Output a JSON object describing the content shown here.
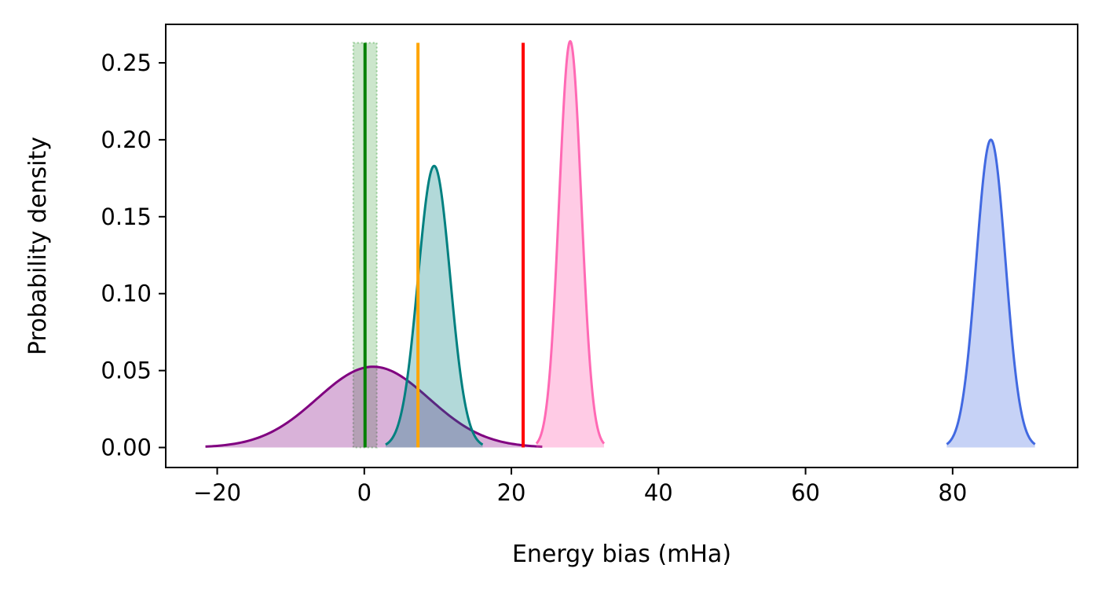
{
  "chart_data": {
    "type": "area",
    "xlabel": "Energy bias (mHa)",
    "ylabel": "Probability density",
    "xlim": [
      -27,
      97
    ],
    "ylim": [
      -0.013,
      0.275
    ],
    "xticks": [
      {
        "value": -20,
        "label": "−20"
      },
      {
        "value": 0,
        "label": "0"
      },
      {
        "value": 20,
        "label": "20"
      },
      {
        "value": 40,
        "label": "40"
      },
      {
        "value": 60,
        "label": "60"
      },
      {
        "value": 80,
        "label": "80"
      }
    ],
    "yticks": [
      {
        "value": 0.0,
        "label": "0.00"
      },
      {
        "value": 0.05,
        "label": "0.05"
      },
      {
        "value": 0.1,
        "label": "0.10"
      },
      {
        "value": 0.15,
        "label": "0.15"
      },
      {
        "value": 0.2,
        "label": "0.20"
      },
      {
        "value": 0.25,
        "label": "0.25"
      }
    ],
    "grid": false,
    "distributions": [
      {
        "mean": 1.2,
        "std": 7.6,
        "range": [
          -21.6,
          24.2
        ],
        "peak": 0.0525,
        "color": "#800080",
        "fill": "#800080",
        "fill_opacity": 0.3
      },
      {
        "mean": 9.5,
        "std": 2.18,
        "range": [
          2.9,
          16.1
        ],
        "peak": 0.183,
        "color": "#008080",
        "fill": "#008080",
        "fill_opacity": 0.3
      },
      {
        "mean": 28.0,
        "std": 1.51,
        "range": [
          23.4,
          32.6
        ],
        "peak": 0.264,
        "color": "#ff69b4",
        "fill": "#ff69b4",
        "fill_opacity": 0.35
      },
      {
        "mean": 85.2,
        "std": 1.99,
        "range": [
          79.2,
          91.2
        ],
        "peak": 0.2,
        "color": "#4169e1",
        "fill": "#4169e1",
        "fill_opacity": 0.3
      }
    ],
    "vertical_lines": [
      {
        "x": 0.1,
        "ymin": 0.0,
        "ymax": 0.263,
        "color": "#008000"
      },
      {
        "x": 7.3,
        "ymin": 0.0,
        "ymax": 0.263,
        "color": "#ffa500"
      },
      {
        "x": 21.6,
        "ymin": 0.0,
        "ymax": 0.263,
        "color": "#ff0000"
      }
    ],
    "shaded_band": {
      "x_range": [
        -1.5,
        1.7
      ],
      "ymin": 0.0,
      "ymax": 0.263,
      "color": "#008000",
      "opacity": 0.2
    }
  }
}
